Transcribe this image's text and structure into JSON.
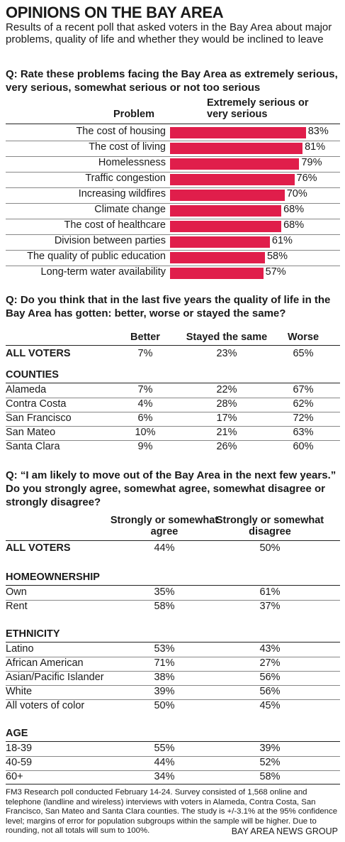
{
  "title": "OPINIONS ON THE BAY AREA",
  "subtitle": "Results of a recent poll that asked voters in the Bay Area about major problems, quality of life and whether they would be inclined to leave",
  "q1": {
    "question": "Q: Rate these problems facing the Bay Area as extremely serious, very serious, somewhat serious or not too serious",
    "col_problem": "Problem",
    "col_value": "Extremely serious or very serious",
    "bar_color": "#e01e4b"
  },
  "q2": {
    "question": "Q: Do you think that in the last five years the quality of life in the Bay Area has gotten: better, worse  or stayed the same?",
    "columns": [
      "Better",
      "Stayed the same",
      "Worse"
    ],
    "all_voters": {
      "label": "ALL VOTERS",
      "values": [
        "7%",
        "23%",
        "65%"
      ]
    },
    "section": "COUNTIES",
    "rows": [
      {
        "label": "Alameda",
        "values": [
          "7%",
          "22%",
          "67%"
        ]
      },
      {
        "label": "Contra Costa",
        "values": [
          "4%",
          "28%",
          "62%"
        ]
      },
      {
        "label": "San Francisco",
        "values": [
          "6%",
          "17%",
          "72%"
        ]
      },
      {
        "label": "San Mateo",
        "values": [
          "10%",
          "21%",
          "63%"
        ]
      },
      {
        "label": "Santa Clara",
        "values": [
          "9%",
          "26%",
          "60%"
        ]
      }
    ]
  },
  "q3": {
    "question": "Q: “I am likely to move out of the Bay Area in the next few years.” Do you strongly agree, somewhat agree, somewhat disagree or strongly disagree?",
    "columns": [
      "Strongly or somewhat agree",
      "Strongly or somewhat disagree"
    ],
    "all_voters": {
      "label": "ALL VOTERS",
      "values": [
        "44%",
        "50%"
      ]
    },
    "groups": [
      {
        "section": "HOMEOWNERSHIP",
        "rows": [
          {
            "label": "Own",
            "values": [
              "35%",
              "61%"
            ]
          },
          {
            "label": "Rent",
            "values": [
              "58%",
              "37%"
            ]
          }
        ]
      },
      {
        "section": "ETHNICITY",
        "rows": [
          {
            "label": "Latino",
            "values": [
              "53%",
              "43%"
            ]
          },
          {
            "label": "African American",
            "values": [
              "71%",
              "27%"
            ]
          },
          {
            "label": "Asian/Pacific Islander",
            "values": [
              "38%",
              "56%"
            ]
          },
          {
            "label": "White",
            "values": [
              "39%",
              "56%"
            ]
          },
          {
            "label": "All voters of color",
            "values": [
              "50%",
              "45%"
            ]
          }
        ]
      },
      {
        "section": "AGE",
        "rows": [
          {
            "label": "18-39",
            "values": [
              "55%",
              "39%"
            ]
          },
          {
            "label": "40-59",
            "values": [
              "44%",
              "52%"
            ]
          },
          {
            "label": "60+",
            "values": [
              "34%",
              "58%"
            ]
          }
        ]
      }
    ]
  },
  "footer": "FM3 Research poll conducted February 14-24. Survey consisted of 1,568 online and telephone (landline and wireless) interviews with voters in Alameda, Contra Costa, San Francisco, San Mateo and Santa Clara counties. The study is +/-3.1% at the 95% confidence level; margins of error for population subgroups within the sample will be higher. Due to rounding, not all totals will sum to 100%.",
  "credit": "BAY AREA NEWS GROUP",
  "chart_data": {
    "type": "bar",
    "orientation": "horizontal",
    "title": "OPINIONS ON THE BAY AREA",
    "xlabel": "Extremely serious or very serious",
    "ylabel": "Problem",
    "categories": [
      "The cost of housing",
      "The cost of living",
      "Homelessness",
      "Traffic congestion",
      "Increasing wildfires",
      "Climate change",
      "The cost of healthcare",
      "Division between parties",
      "The quality of public education",
      "Long-term water availability"
    ],
    "values": [
      83,
      81,
      79,
      76,
      70,
      68,
      68,
      61,
      58,
      57
    ],
    "value_labels": [
      "83%",
      "81%",
      "79%",
      "76%",
      "70%",
      "68%",
      "68%",
      "61%",
      "58%",
      "57%"
    ],
    "xlim": [
      0,
      100
    ],
    "grid": false,
    "legend": "none"
  }
}
